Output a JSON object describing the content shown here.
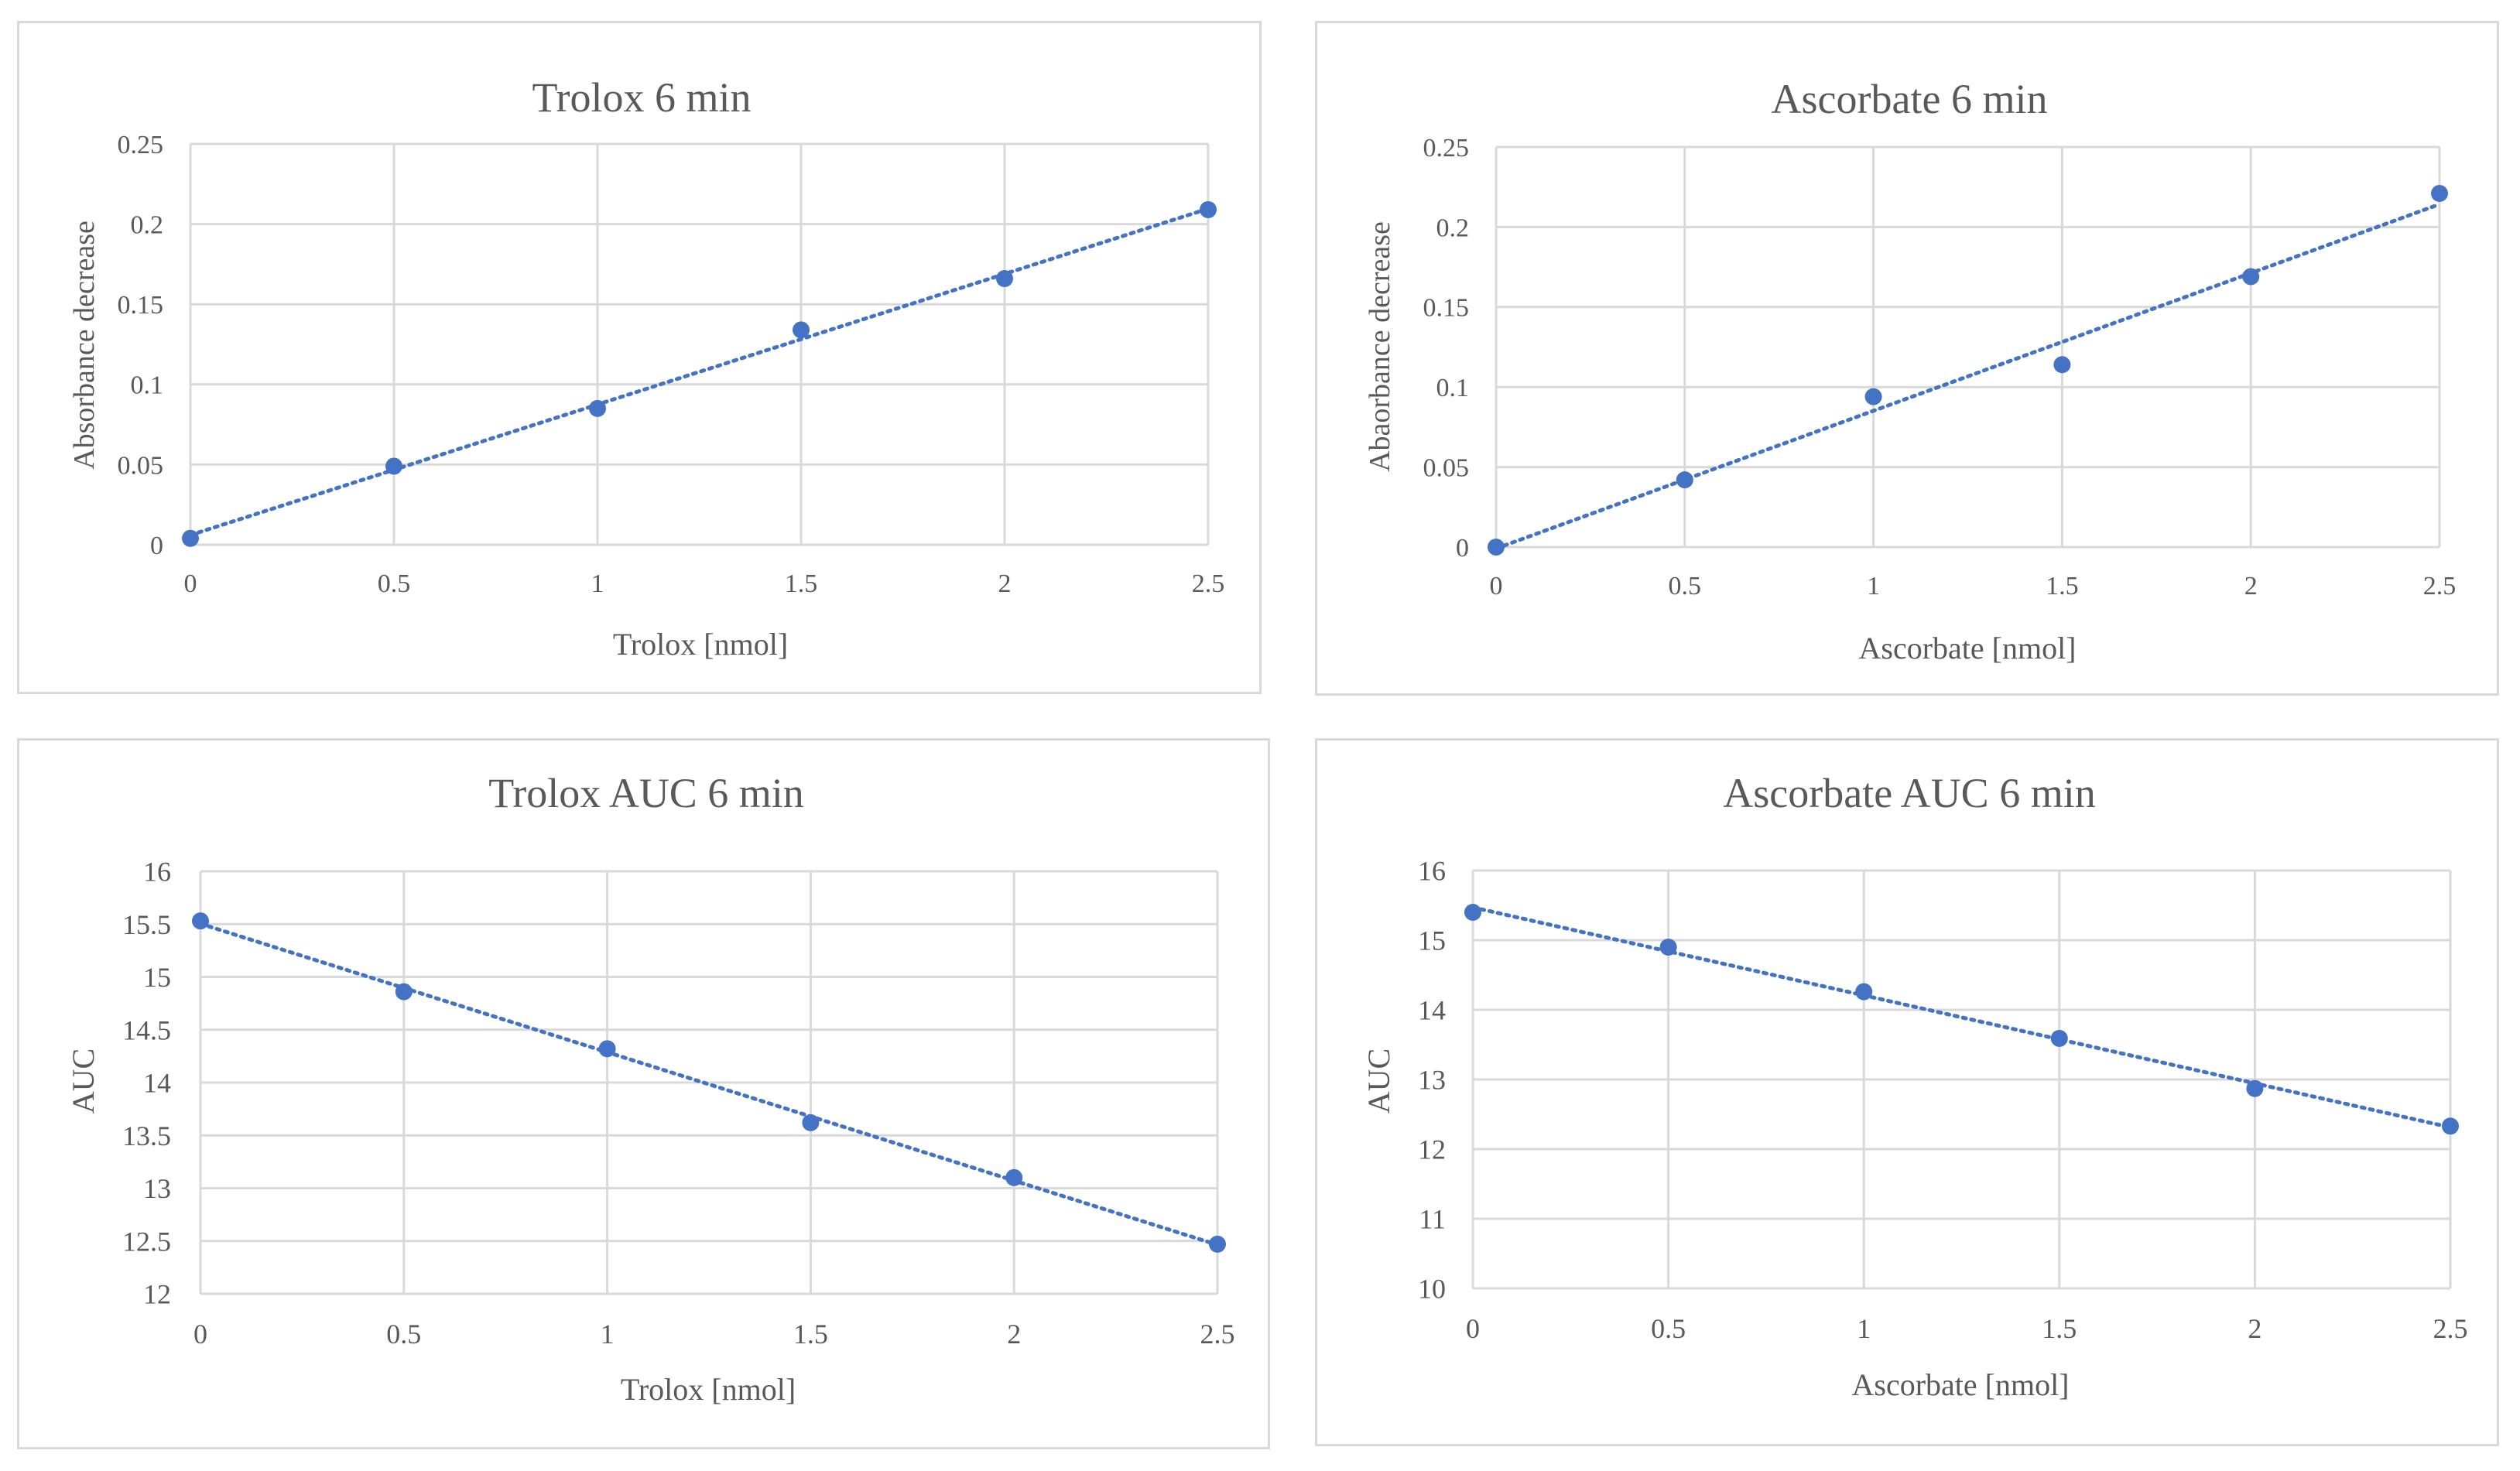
{
  "colors": {
    "series": "#4472c4",
    "grid": "#d9d9d9",
    "text": "#595959",
    "border": "#d9d9d9"
  },
  "chart_data": [
    {
      "type": "scatter",
      "title": "Trolox 6 min",
      "xlabel": "Trolox [nmol]",
      "ylabel": "Absorbance decrease",
      "xlim": [
        0,
        2.5
      ],
      "ylim": [
        0,
        0.25
      ],
      "xticks": [
        "0",
        "0.5",
        "1",
        "1.5",
        "2",
        "2.5"
      ],
      "yticks": [
        "0",
        "0.05",
        "0.1",
        "0.15",
        "0.2",
        "0.25"
      ],
      "grid": true,
      "trendline": "linear",
      "series": [
        {
          "name": "Trolox",
          "x": [
            0,
            0.5,
            1,
            1.5,
            2,
            2.5
          ],
          "y": [
            0.004,
            0.049,
            0.085,
            0.134,
            0.166,
            0.209
          ]
        }
      ]
    },
    {
      "type": "scatter",
      "title": "Ascorbate 6 min",
      "xlabel": "Ascorbate [nmol]",
      "ylabel": "Abaorbance decrease",
      "xlim": [
        0,
        2.5
      ],
      "ylim": [
        0,
        0.25
      ],
      "xticks": [
        "0",
        "0.5",
        "1",
        "1.5",
        "2",
        "2.5"
      ],
      "yticks": [
        "0",
        "0.05",
        "0.1",
        "0.15",
        "0.2",
        "0.25"
      ],
      "grid": true,
      "trendline": "linear",
      "series": [
        {
          "name": "Ascorbate",
          "x": [
            0,
            0.5,
            1,
            1.5,
            2,
            2.5
          ],
          "y": [
            0.0,
            0.042,
            0.094,
            0.114,
            0.169,
            0.221
          ]
        }
      ]
    },
    {
      "type": "scatter",
      "title": "Trolox AUC 6 min",
      "xlabel": "Trolox [nmol]",
      "ylabel": "AUC",
      "xlim": [
        0,
        2.5
      ],
      "ylim": [
        12,
        16
      ],
      "xticks": [
        "0",
        "0.5",
        "1",
        "1.5",
        "2",
        "2.5"
      ],
      "yticks": [
        "12",
        "12.5",
        "13",
        "13.5",
        "14",
        "14.5",
        "15",
        "15.5",
        "16"
      ],
      "grid": true,
      "trendline": "linear",
      "series": [
        {
          "name": "Trolox AUC",
          "x": [
            0,
            0.5,
            1,
            1.5,
            2,
            2.5
          ],
          "y": [
            15.53,
            14.86,
            14.32,
            13.62,
            13.1,
            12.47
          ]
        }
      ]
    },
    {
      "type": "scatter",
      "title": "Ascorbate AUC 6 min",
      "xlabel": "Ascorbate [nmol]",
      "ylabel": "AUC",
      "xlim": [
        0,
        2.5
      ],
      "ylim": [
        10,
        16
      ],
      "xticks": [
        "0",
        "0.5",
        "1",
        "1.5",
        "2",
        "2.5"
      ],
      "yticks": [
        "10",
        "11",
        "12",
        "13",
        "14",
        "15",
        "16"
      ],
      "grid": true,
      "trendline": "linear",
      "series": [
        {
          "name": "Ascorbate AUC",
          "x": [
            0,
            0.5,
            1,
            1.5,
            2,
            2.5
          ],
          "y": [
            15.4,
            14.9,
            14.26,
            13.59,
            12.87,
            12.33
          ]
        }
      ]
    }
  ]
}
